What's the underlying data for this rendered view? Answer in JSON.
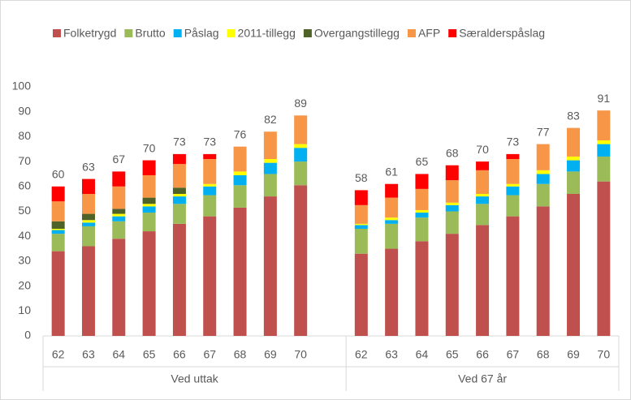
{
  "chart_data": {
    "type": "bar",
    "stacked": true,
    "groups": [
      {
        "name": "Ved uttak",
        "categories": [
          "62",
          "63",
          "64",
          "65",
          "66",
          "67",
          "68",
          "69",
          "70"
        ]
      },
      {
        "name": "Ved 67 år",
        "categories": [
          "62",
          "63",
          "64",
          "65",
          "66",
          "67",
          "68",
          "69",
          "70"
        ]
      }
    ],
    "series": [
      {
        "name": "Folketrygd",
        "color": "#c0504d",
        "values": [
          34,
          36,
          39,
          42,
          45,
          48,
          51.5,
          56,
          60.5,
          33,
          35,
          38,
          41,
          44.5,
          48,
          52,
          57,
          62
        ]
      },
      {
        "name": "Brutto",
        "color": "#9bbb59",
        "values": [
          7,
          8,
          7,
          7.5,
          8,
          8.5,
          9,
          9,
          9.5,
          10,
          10,
          9.5,
          9,
          8.5,
          8.5,
          9,
          9,
          10
        ]
      },
      {
        "name": "Påslag",
        "color": "#00b0f0",
        "values": [
          1.5,
          1.5,
          2,
          2.5,
          3,
          3.5,
          4,
          4.5,
          5.5,
          1.5,
          1.5,
          2,
          2.5,
          3,
          3.5,
          4,
          4.5,
          5
        ]
      },
      {
        "name": "2011-tillegg",
        "color": "#ffff00",
        "values": [
          0.5,
          1,
          1,
          1,
          1,
          1,
          1.5,
          1.5,
          1.5,
          0.5,
          1,
          1,
          1,
          1,
          1,
          1.5,
          1.5,
          1.5
        ]
      },
      {
        "name": "Overgangstillegg",
        "color": "#4f6228",
        "values": [
          3,
          2.5,
          2,
          2.5,
          2.5,
          0,
          0,
          0,
          0,
          0,
          0,
          0,
          0,
          0,
          0,
          0,
          0,
          0
        ]
      },
      {
        "name": "AFP",
        "color": "#f79646",
        "values": [
          8,
          8,
          9,
          9,
          9.5,
          10,
          10,
          11,
          11.5,
          7.5,
          8,
          8.5,
          9,
          9.5,
          10,
          10.5,
          11.5,
          12
        ]
      },
      {
        "name": "Særalderspåslag",
        "color": "#ff0000",
        "values": [
          6,
          6,
          6,
          6,
          4,
          2,
          0,
          0,
          0,
          6,
          5.5,
          6,
          6,
          3.5,
          2,
          0,
          0,
          0
        ]
      }
    ],
    "totals": [
      60,
      63,
      67,
      70,
      73,
      73,
      76,
      82,
      89,
      58,
      61,
      65,
      68,
      70,
      73,
      77,
      83,
      91
    ],
    "ylim": [
      0,
      100
    ],
    "yticks": [
      0,
      10,
      20,
      30,
      40,
      50,
      60,
      70,
      80,
      90,
      100
    ],
    "grid": false,
    "legend": "top"
  }
}
